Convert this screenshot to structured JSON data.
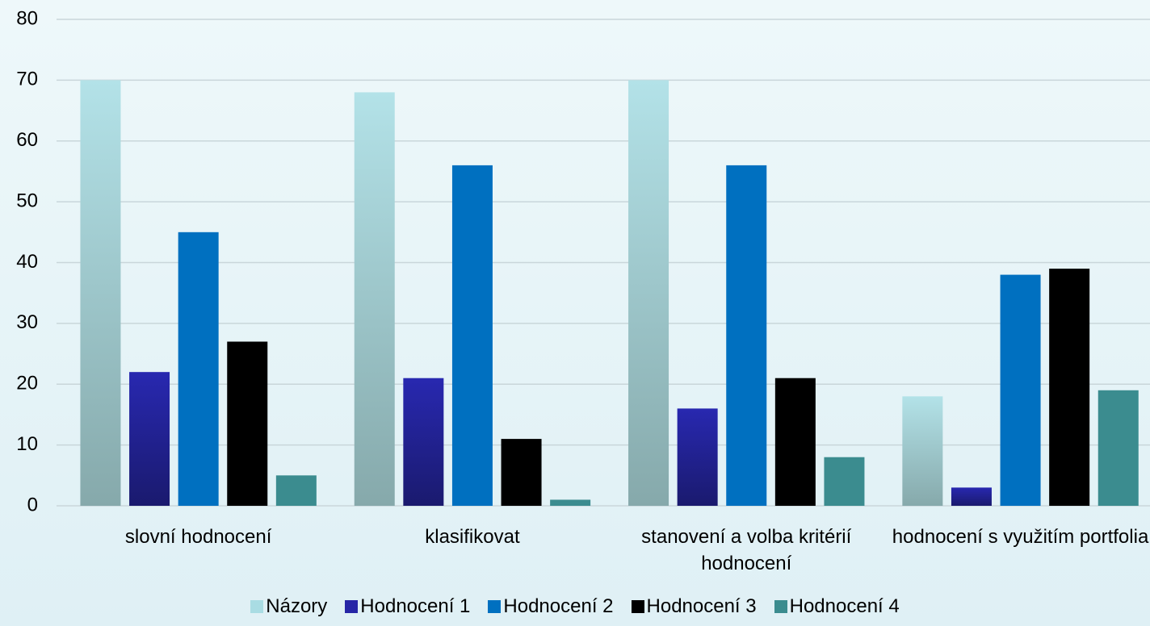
{
  "chart_data": {
    "type": "bar",
    "categories": [
      "slovní hodnocení",
      "klasifikovat",
      "stanovení a volba kritérií hodnocení",
      "hodnocení s využitím portfolia"
    ],
    "series": [
      {
        "name": "Názory",
        "color": "#a9dce3",
        "values": [
          70,
          68,
          70,
          18
        ]
      },
      {
        "name": "Hodnocení 1",
        "color": "#2626a6",
        "values": [
          22,
          21,
          16,
          3
        ]
      },
      {
        "name": "Hodnocení 2",
        "color": "#0070c0",
        "values": [
          45,
          56,
          56,
          38
        ]
      },
      {
        "name": "Hodnocení 3",
        "color": "#000000",
        "values": [
          27,
          11,
          21,
          39
        ]
      },
      {
        "name": "Hodnocení 4",
        "color": "#3b8c8f",
        "values": [
          5,
          1,
          8,
          19
        ]
      }
    ],
    "ylim": [
      0,
      80
    ],
    "yticks": [
      0,
      10,
      20,
      30,
      40,
      50,
      60,
      70,
      80
    ],
    "grid": true,
    "legend": "bottom"
  }
}
